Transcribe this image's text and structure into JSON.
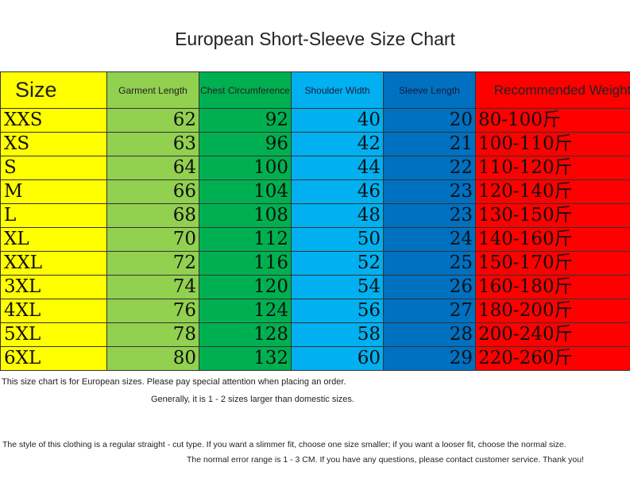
{
  "title": "European Short-Sleeve Size Chart",
  "colors": {
    "size_col": "#ffff00",
    "length_col": "#92d050",
    "chest_col": "#00b050",
    "shoulder_col": "#00b0f0",
    "sleeve_col": "#0070c0",
    "weight_col": "#ff0000"
  },
  "table": {
    "headers": [
      "Size",
      "Garment Length",
      "Chest Circumference",
      "Shoulder Width",
      "Sleeve Length",
      "Recommended Weight"
    ],
    "rows": [
      [
        "XXS",
        "62",
        "92",
        "40",
        "20",
        "80-100斤"
      ],
      [
        "XS",
        "63",
        "96",
        "42",
        "21",
        "100-110斤"
      ],
      [
        "S",
        "64",
        "100",
        "44",
        "22",
        "110-120斤"
      ],
      [
        "M",
        "66",
        "104",
        "46",
        "23",
        "120-140斤"
      ],
      [
        "L",
        "68",
        "108",
        "48",
        "23",
        "130-150斤"
      ],
      [
        "XL",
        "70",
        "112",
        "50",
        "24",
        "140-160斤"
      ],
      [
        "XXL",
        "72",
        "116",
        "52",
        "25",
        "150-170斤"
      ],
      [
        "3XL",
        "74",
        "120",
        "54",
        "26",
        "160-180斤"
      ],
      [
        "4XL",
        "76",
        "124",
        "56",
        "27",
        "180-200斤"
      ],
      [
        "5XL",
        "78",
        "128",
        "58",
        "28",
        "200-240斤"
      ],
      [
        "6XL",
        "80",
        "132",
        "60",
        "29",
        "220-260斤"
      ]
    ]
  },
  "notes": {
    "line1": "This size chart is for European sizes. Please pay special attention when placing an order.",
    "line2": "Generally, it is 1 - 2 sizes larger than domestic sizes.",
    "line3": "The style of this clothing is a regular straight - cut type. If you want a slimmer fit, choose one size smaller; if you want a looser fit, choose the normal size.",
    "line4": "The normal error range is 1 - 3 CM. If you have any questions, please contact customer service. Thank you!"
  }
}
